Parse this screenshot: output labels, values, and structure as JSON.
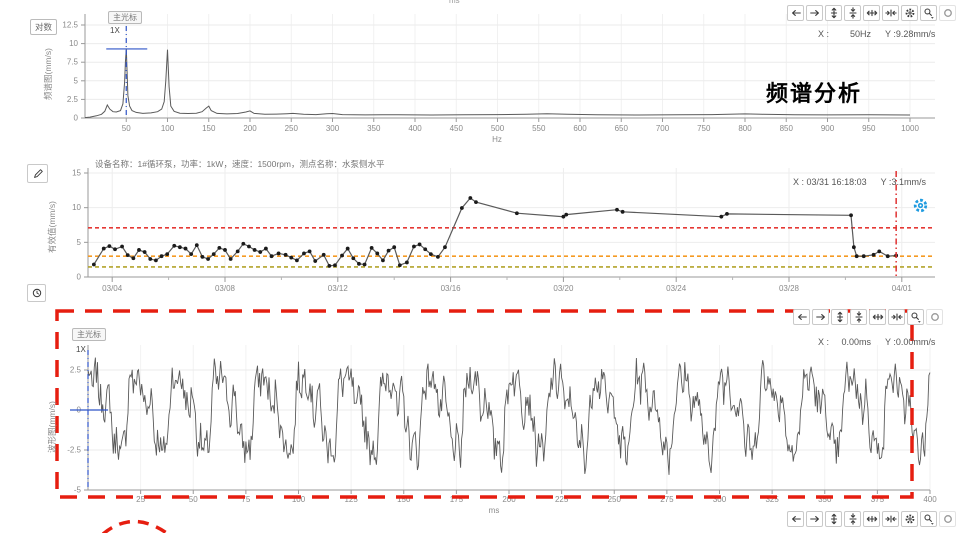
{
  "header": {
    "ms_hint": "ms"
  },
  "colors": {
    "cursor_blue": "#2f54c8",
    "cursor_red": "#e03131",
    "annotation_red": "#e61e10",
    "gear_blue": "#1e9be0",
    "line": "#5a5a5a",
    "threshold_red": "#e53935",
    "threshold_orange": "#f59a23",
    "threshold_olive": "#b3a42b"
  },
  "toolbars": {
    "spectrum": [
      "arrow-left",
      "arrow-right",
      "zoom-y-in",
      "zoom-y-out",
      "zoom-x-in",
      "zoom-x-out",
      "gear",
      "zoom-select",
      "circle"
    ],
    "waveform_top": [
      "arrow-left",
      "arrow-right",
      "zoom-y-in",
      "zoom-y-out",
      "zoom-x-in",
      "zoom-x-out",
      "zoom-select",
      "circle"
    ],
    "waveform_bottom": [
      "arrow-left",
      "arrow-right",
      "zoom-y-in",
      "zoom-y-out",
      "zoom-x-in",
      "zoom-x-out",
      "gear",
      "zoom-select",
      "circle"
    ]
  },
  "spectrum": {
    "log_button": "对数",
    "ylabel": "频谱图(mm/s)",
    "xunit": "Hz",
    "annotation": "频谱分析",
    "readout": {
      "x_label": "X :",
      "x_value": "50Hz",
      "y_label": "Y :",
      "y_value": "9.28mm/s"
    },
    "cursor": {
      "label": "主光标",
      "tag": "1X"
    }
  },
  "trend": {
    "title": "设备名称：1#循环泵，功率：1kW，速度：1500rpm，测点名称：水泵侧水平",
    "ylabel": "有效值(mm/s)",
    "readout": {
      "x_label": "X :",
      "x_value": "03/31 16:18:03",
      "y_label": "Y :",
      "y_value": "3.1mm/s"
    }
  },
  "waveform": {
    "ylabel": "波形图(mm/s)",
    "xunit": "ms",
    "readout": {
      "x_label": "X :",
      "x_value": "0.00ms",
      "y_label": "Y :",
      "y_value": "0.00mm/s"
    },
    "cursor": {
      "label": "主光标",
      "tag": "1X"
    }
  },
  "chart_data": [
    {
      "type": "line",
      "title": "频谱分析",
      "xlabel": "Hz",
      "ylabel": "频谱图(mm/s)",
      "xlim": [
        0,
        1000
      ],
      "ylim": [
        0,
        12.5
      ],
      "yticks": [
        0,
        2.5,
        5,
        7.5,
        10,
        12.5
      ],
      "xtick_step": 50,
      "cursor": {
        "x": 50,
        "y": 9.28
      },
      "points": [
        [
          0,
          0.05
        ],
        [
          6,
          0.12
        ],
        [
          14,
          0.3
        ],
        [
          20,
          0.5
        ],
        [
          24,
          0.9
        ],
        [
          27,
          1.75
        ],
        [
          30,
          1.2
        ],
        [
          34,
          0.85
        ],
        [
          38,
          0.8
        ],
        [
          43,
          1.0
        ],
        [
          46,
          1.9
        ],
        [
          48,
          4.8
        ],
        [
          49,
          7.5
        ],
        [
          50,
          9.3
        ],
        [
          51,
          6.2
        ],
        [
          52,
          3.0
        ],
        [
          54,
          1.6
        ],
        [
          57,
          1.0
        ],
        [
          62,
          0.75
        ],
        [
          70,
          0.62
        ],
        [
          80,
          0.68
        ],
        [
          88,
          0.85
        ],
        [
          93,
          1.2
        ],
        [
          96,
          2.2
        ],
        [
          98,
          5.0
        ],
        [
          100,
          9.2
        ],
        [
          102,
          4.2
        ],
        [
          104,
          1.6
        ],
        [
          108,
          0.9
        ],
        [
          115,
          0.65
        ],
        [
          125,
          0.6
        ],
        [
          135,
          0.65
        ],
        [
          142,
          0.85
        ],
        [
          147,
          1.35
        ],
        [
          150,
          1.6
        ],
        [
          153,
          1.0
        ],
        [
          160,
          0.62
        ],
        [
          172,
          0.55
        ],
        [
          185,
          0.6
        ],
        [
          195,
          0.8
        ],
        [
          200,
          0.95
        ],
        [
          205,
          0.62
        ],
        [
          218,
          0.5
        ],
        [
          232,
          0.52
        ],
        [
          245,
          0.58
        ],
        [
          252,
          0.62
        ],
        [
          265,
          0.5
        ],
        [
          280,
          0.46
        ],
        [
          293,
          0.58
        ],
        [
          300,
          0.6
        ],
        [
          312,
          0.46
        ],
        [
          340,
          0.42
        ],
        [
          380,
          0.44
        ],
        [
          420,
          0.4
        ],
        [
          460,
          0.43
        ],
        [
          500,
          0.46
        ],
        [
          535,
          0.5
        ],
        [
          560,
          0.56
        ],
        [
          585,
          0.5
        ],
        [
          620,
          0.45
        ],
        [
          670,
          0.4
        ],
        [
          720,
          0.44
        ],
        [
          760,
          0.46
        ],
        [
          800,
          0.55
        ],
        [
          820,
          0.5
        ],
        [
          860,
          0.44
        ],
        [
          900,
          0.41
        ],
        [
          950,
          0.43
        ],
        [
          1000,
          0.4
        ]
      ]
    },
    {
      "type": "line",
      "markers": true,
      "ylabel": "有效值(mm/s)",
      "ylim": [
        0,
        15
      ],
      "yticks": [
        0,
        5,
        10,
        15
      ],
      "x_start_date": "03/03",
      "xtick_labels": [
        "03/04",
        "03/08",
        "03/12",
        "03/16",
        "03/20",
        "03/24",
        "03/28",
        "04/01"
      ],
      "xtick_day_offsets": [
        1,
        5,
        9,
        13,
        17,
        21,
        25,
        29
      ],
      "thresholds": [
        {
          "value": 7.1,
          "color": "#e53935"
        },
        {
          "value": 3.0,
          "color": "#f59a23"
        },
        {
          "value": 1.45,
          "color": "#b3a42b"
        }
      ],
      "cursor": {
        "day_offset": 28.8,
        "x": "03/31 16:18:03",
        "y": 3.1
      },
      "points": [
        [
          0.35,
          1.8
        ],
        [
          0.7,
          4.1
        ],
        [
          0.9,
          4.45
        ],
        [
          1.1,
          4.0
        ],
        [
          1.35,
          4.4
        ],
        [
          1.55,
          3.15
        ],
        [
          1.75,
          2.7
        ],
        [
          1.95,
          3.9
        ],
        [
          2.15,
          3.6
        ],
        [
          2.35,
          2.6
        ],
        [
          2.55,
          2.4
        ],
        [
          2.75,
          3.0
        ],
        [
          2.95,
          3.3
        ],
        [
          3.2,
          4.5
        ],
        [
          3.4,
          4.3
        ],
        [
          3.6,
          4.1
        ],
        [
          3.8,
          3.3
        ],
        [
          4.0,
          4.6
        ],
        [
          4.2,
          2.9
        ],
        [
          4.4,
          2.6
        ],
        [
          4.6,
          3.3
        ],
        [
          4.8,
          4.2
        ],
        [
          5.0,
          3.9
        ],
        [
          5.2,
          2.6
        ],
        [
          5.45,
          3.7
        ],
        [
          5.65,
          4.8
        ],
        [
          5.85,
          4.4
        ],
        [
          6.05,
          3.9
        ],
        [
          6.25,
          3.6
        ],
        [
          6.45,
          4.1
        ],
        [
          6.65,
          3.0
        ],
        [
          6.9,
          3.4
        ],
        [
          7.15,
          3.2
        ],
        [
          7.35,
          2.8
        ],
        [
          7.55,
          2.4
        ],
        [
          7.8,
          3.4
        ],
        [
          8.0,
          3.7
        ],
        [
          8.2,
          2.3
        ],
        [
          8.5,
          3.2
        ],
        [
          8.7,
          1.6
        ],
        [
          8.9,
          1.7
        ],
        [
          9.15,
          3.1
        ],
        [
          9.35,
          4.1
        ],
        [
          9.55,
          2.7
        ],
        [
          9.75,
          1.9
        ],
        [
          9.95,
          1.8
        ],
        [
          10.2,
          4.2
        ],
        [
          10.4,
          3.4
        ],
        [
          10.6,
          2.4
        ],
        [
          10.8,
          3.8
        ],
        [
          11.0,
          4.3
        ],
        [
          11.2,
          1.7
        ],
        [
          11.45,
          2.1
        ],
        [
          11.7,
          4.4
        ],
        [
          11.9,
          4.7
        ],
        [
          12.1,
          4.0
        ],
        [
          12.3,
          3.3
        ],
        [
          12.55,
          2.9
        ],
        [
          12.8,
          4.3
        ],
        [
          13.4,
          9.95
        ],
        [
          13.7,
          11.4
        ],
        [
          13.9,
          10.8
        ],
        [
          15.35,
          9.2
        ],
        [
          17.0,
          8.7
        ],
        [
          17.1,
          9.0
        ],
        [
          18.9,
          9.7
        ],
        [
          19.1,
          9.4
        ],
        [
          22.6,
          8.7
        ],
        [
          22.8,
          9.1
        ],
        [
          27.2,
          8.9
        ],
        [
          27.3,
          4.3
        ],
        [
          27.4,
          3.0
        ],
        [
          27.65,
          3.0
        ],
        [
          28.0,
          3.2
        ],
        [
          28.2,
          3.7
        ],
        [
          28.5,
          3.0
        ],
        [
          28.8,
          3.1
        ]
      ]
    },
    {
      "type": "line",
      "ylabel": "波形图(mm/s)",
      "xlabel": "ms",
      "xlim": [
        0,
        400
      ],
      "ylim": [
        -5,
        3.9
      ],
      "yticks": [
        2.5,
        0,
        -2.5,
        -5
      ],
      "xtick_step": 25,
      "cursor": {
        "x": 0,
        "y": 0
      },
      "signal": {
        "duration_ms": 400,
        "sample_step_ms": 0.5,
        "components": [
          {
            "period_ms": 20,
            "amp": 2.1,
            "phase": 0.3
          },
          {
            "period_ms": 10,
            "amp": 0.85,
            "phase": 1.1
          },
          {
            "period_ms": 5,
            "amp": 0.6,
            "phase": 2.0
          },
          {
            "period_ms": 3.3,
            "amp": 0.5,
            "phase": 0.9
          }
        ],
        "noise_amp": 0.95,
        "seed": 7
      }
    }
  ]
}
